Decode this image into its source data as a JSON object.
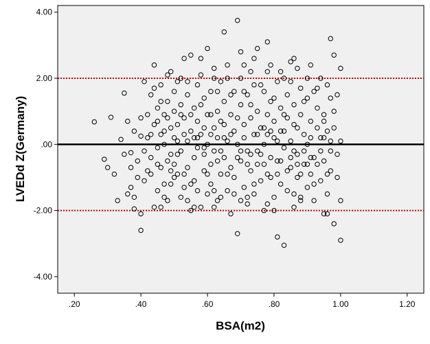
{
  "chart_data": {
    "type": "scatter",
    "xlabel": "BSA(m2)",
    "ylabel": "LVEDd Z(Germany)",
    "xlim": [
      0.15,
      1.25
    ],
    "ylim": [
      -4.5,
      4.2
    ],
    "x_ticks": [
      ".20",
      ".40",
      ".60",
      ".80",
      "1.00",
      "1.20"
    ],
    "y_ticks": [
      "4.00",
      "2.00",
      ".00",
      "-2.00",
      "-4.00"
    ],
    "grid": false,
    "reference_lines": [
      {
        "y": 2.0,
        "style": "dotted",
        "color": "#c00000"
      },
      {
        "y": 0.0,
        "style": "solid",
        "color": "#000000"
      },
      {
        "y": -2.0,
        "style": "dotted",
        "color": "#c00000"
      }
    ],
    "point_count_estimate": 600,
    "points": [
      [
        0.26,
        0.68
      ],
      [
        0.29,
        -0.45
      ],
      [
        0.3,
        -0.7
      ],
      [
        0.31,
        0.82
      ],
      [
        0.32,
        -0.9
      ],
      [
        0.33,
        -1.7
      ],
      [
        0.34,
        0.15
      ],
      [
        0.35,
        -0.3
      ],
      [
        0.35,
        1.55
      ],
      [
        0.36,
        -1.5
      ],
      [
        0.36,
        0.7
      ],
      [
        0.37,
        -1.3
      ],
      [
        0.37,
        -0.7
      ],
      [
        0.37,
        -0.25
      ],
      [
        0.38,
        -1.6
      ],
      [
        0.38,
        -1.95
      ],
      [
        0.38,
        0.4
      ],
      [
        0.39,
        -1.0
      ],
      [
        0.39,
        -0.5
      ],
      [
        0.4,
        0.25
      ],
      [
        0.4,
        -2.1
      ],
      [
        0.4,
        -2.6
      ],
      [
        0.4,
        0.8
      ],
      [
        0.41,
        1.9
      ],
      [
        0.41,
        -1.1
      ],
      [
        0.42,
        -0.8
      ],
      [
        0.42,
        0.2
      ],
      [
        0.43,
        1.5
      ],
      [
        0.43,
        -0.4
      ],
      [
        0.44,
        2.4
      ],
      [
        0.44,
        -1.9
      ],
      [
        0.44,
        0.6
      ],
      [
        0.45,
        1.1
      ],
      [
        0.45,
        -1.4
      ],
      [
        0.45,
        -0.1
      ],
      [
        0.46,
        0.3
      ],
      [
        0.46,
        -0.7
      ],
      [
        0.46,
        1.8
      ],
      [
        0.47,
        0.9
      ],
      [
        0.47,
        -1.2
      ],
      [
        0.47,
        0.0
      ],
      [
        0.48,
        -0.5
      ],
      [
        0.48,
        1.3
      ],
      [
        0.48,
        -1.7
      ],
      [
        0.49,
        0.5
      ],
      [
        0.49,
        -0.3
      ],
      [
        0.49,
        2.2
      ],
      [
        0.5,
        1.0
      ],
      [
        0.5,
        -1.0
      ],
      [
        0.5,
        -0.6
      ],
      [
        0.5,
        0.2
      ],
      [
        0.51,
        1.9
      ],
      [
        0.51,
        -0.9
      ],
      [
        0.51,
        0.6
      ],
      [
        0.52,
        1.2
      ],
      [
        0.52,
        -1.6
      ],
      [
        0.52,
        -0.2
      ],
      [
        0.53,
        2.6
      ],
      [
        0.53,
        0.8
      ],
      [
        0.53,
        -1.3
      ],
      [
        0.54,
        0.1
      ],
      [
        0.54,
        1.5
      ],
      [
        0.54,
        -0.7
      ],
      [
        0.55,
        -2.0
      ],
      [
        0.55,
        0.4
      ],
      [
        0.55,
        2.7
      ],
      [
        0.56,
        1.1
      ],
      [
        0.56,
        -0.4
      ],
      [
        0.56,
        -1.1
      ],
      [
        0.57,
        0.7
      ],
      [
        0.57,
        1.8
      ],
      [
        0.57,
        -0.1
      ],
      [
        0.58,
        -1.9
      ],
      [
        0.58,
        0.3
      ],
      [
        0.58,
        2.1
      ],
      [
        0.59,
        1.4
      ],
      [
        0.59,
        -0.8
      ],
      [
        0.59,
        -0.3
      ],
      [
        0.6,
        2.9
      ],
      [
        0.6,
        0.9
      ],
      [
        0.6,
        -1.5
      ],
      [
        0.6,
        0.0
      ],
      [
        0.61,
        1.6
      ],
      [
        0.61,
        -0.6
      ],
      [
        0.61,
        -1.2
      ],
      [
        0.62,
        0.5
      ],
      [
        0.62,
        2.3
      ],
      [
        0.62,
        -0.2
      ],
      [
        0.63,
        1.0
      ],
      [
        0.63,
        -1.7
      ],
      [
        0.63,
        0.2
      ],
      [
        0.64,
        1.9
      ],
      [
        0.64,
        -0.9
      ],
      [
        0.64,
        0.7
      ],
      [
        0.65,
        3.4
      ],
      [
        0.65,
        -0.4
      ],
      [
        0.65,
        1.3
      ],
      [
        0.66,
        -1.4
      ],
      [
        0.66,
        0.1
      ],
      [
        0.66,
        2.0
      ],
      [
        0.67,
        0.9
      ],
      [
        0.67,
        -0.7
      ],
      [
        0.67,
        -2.1
      ],
      [
        0.68,
        1.6
      ],
      [
        0.68,
        0.4
      ],
      [
        0.68,
        -1.0
      ],
      [
        0.69,
        3.75
      ],
      [
        0.69,
        -2.7
      ],
      [
        0.69,
        0.0
      ],
      [
        0.7,
        2.8
      ],
      [
        0.7,
        1.2
      ],
      [
        0.7,
        -0.5
      ],
      [
        0.71,
        0.6
      ],
      [
        0.71,
        -1.3
      ],
      [
        0.71,
        2.4
      ],
      [
        0.72,
        1.5
      ],
      [
        0.72,
        -0.2
      ],
      [
        0.72,
        -1.8
      ],
      [
        0.73,
        0.8
      ],
      [
        0.73,
        2.2
      ],
      [
        0.73,
        -0.8
      ],
      [
        0.74,
        0.3
      ],
      [
        0.74,
        1.8
      ],
      [
        0.74,
        -1.5
      ],
      [
        0.75,
        2.9
      ],
      [
        0.75,
        -0.6
      ],
      [
        0.75,
        1.0
      ],
      [
        0.76,
        0.5
      ],
      [
        0.76,
        -1.1
      ],
      [
        0.76,
        -0.3
      ],
      [
        0.77,
        1.6
      ],
      [
        0.77,
        0.0
      ],
      [
        0.77,
        -2.0
      ],
      [
        0.78,
        3.1
      ],
      [
        0.78,
        0.9
      ],
      [
        0.78,
        -0.9
      ],
      [
        0.79,
        2.4
      ],
      [
        0.79,
        -0.4
      ],
      [
        0.79,
        1.3
      ],
      [
        0.8,
        0.2
      ],
      [
        0.8,
        -1.6
      ],
      [
        0.8,
        0.7
      ],
      [
        0.81,
        1.9
      ],
      [
        0.81,
        -0.5
      ],
      [
        0.81,
        -2.8
      ],
      [
        0.82,
        1.1
      ],
      [
        0.82,
        -1.2
      ],
      [
        0.82,
        0.4
      ],
      [
        0.83,
        -3.05
      ],
      [
        0.83,
        2.0
      ],
      [
        0.83,
        -0.1
      ],
      [
        0.84,
        0.8
      ],
      [
        0.84,
        -1.4
      ],
      [
        0.84,
        1.5
      ],
      [
        0.85,
        2.5
      ],
      [
        0.85,
        -0.7
      ],
      [
        0.85,
        0.1
      ],
      [
        0.86,
        1.2
      ],
      [
        0.86,
        -1.9
      ],
      [
        0.86,
        0.6
      ],
      [
        0.87,
        2.3
      ],
      [
        0.87,
        -0.3
      ],
      [
        0.87,
        -1.0
      ],
      [
        0.88,
        0.9
      ],
      [
        0.88,
        1.7
      ],
      [
        0.88,
        -1.6
      ],
      [
        0.89,
        0.3
      ],
      [
        0.89,
        -0.6
      ],
      [
        0.9,
        1.4
      ],
      [
        0.9,
        -1.3
      ],
      [
        0.9,
        0.0
      ],
      [
        0.91,
        2.4
      ],
      [
        0.91,
        0.7
      ],
      [
        0.91,
        -0.9
      ],
      [
        0.92,
        1.6
      ],
      [
        0.92,
        -0.4
      ],
      [
        0.92,
        -1.7
      ],
      [
        0.93,
        0.5
      ],
      [
        0.93,
        1.1
      ],
      [
        0.94,
        -1.1
      ],
      [
        0.94,
        2.0
      ],
      [
        0.94,
        0.2
      ],
      [
        0.95,
        -2.1
      ],
      [
        0.95,
        0.9
      ],
      [
        0.95,
        -0.5
      ],
      [
        0.96,
        1.8
      ],
      [
        0.96,
        -1.5
      ],
      [
        0.96,
        0.4
      ],
      [
        0.97,
        3.2
      ],
      [
        0.97,
        -0.8
      ],
      [
        0.97,
        1.4
      ],
      [
        0.98,
        -2.4
      ],
      [
        0.98,
        0.5
      ],
      [
        0.98,
        2.7
      ],
      [
        0.99,
        -0.3
      ],
      [
        0.99,
        1.5
      ],
      [
        1.0,
        -2.9
      ],
      [
        1.0,
        0.1
      ],
      [
        1.0,
        2.3
      ],
      [
        1.0,
        -1.7
      ],
      [
        0.42,
        0.9
      ],
      [
        0.43,
        -0.9
      ],
      [
        0.44,
        1.7
      ],
      [
        0.45,
        -0.6
      ],
      [
        0.46,
        1.3
      ],
      [
        0.47,
        -1.6
      ],
      [
        0.48,
        0.8
      ],
      [
        0.49,
        -1.2
      ],
      [
        0.5,
        1.6
      ],
      [
        0.51,
        -0.3
      ],
      [
        0.52,
        0.9
      ],
      [
        0.53,
        -0.9
      ],
      [
        0.54,
        1.9
      ],
      [
        0.55,
        -1.2
      ],
      [
        0.56,
        0.2
      ],
      [
        0.57,
        -1.4
      ],
      [
        0.58,
        1.2
      ],
      [
        0.59,
        0.5
      ],
      [
        0.6,
        -0.9
      ],
      [
        0.61,
        0.9
      ],
      [
        0.62,
        -1.4
      ],
      [
        0.63,
        1.6
      ],
      [
        0.64,
        -0.2
      ],
      [
        0.65,
        0.6
      ],
      [
        0.66,
        -0.9
      ],
      [
        0.67,
        1.5
      ],
      [
        0.68,
        -1.5
      ],
      [
        0.69,
        0.8
      ],
      [
        0.7,
        -0.2
      ],
      [
        0.71,
        1.6
      ],
      [
        0.72,
        -0.6
      ],
      [
        0.73,
        1.2
      ],
      [
        0.74,
        -1.2
      ],
      [
        0.75,
        0.3
      ],
      [
        0.76,
        1.8
      ],
      [
        0.77,
        -0.6
      ],
      [
        0.78,
        0.3
      ],
      [
        0.79,
        -1.0
      ],
      [
        0.8,
        1.4
      ],
      [
        0.81,
        0.1
      ],
      [
        0.82,
        -0.5
      ],
      [
        0.83,
        0.9
      ],
      [
        0.84,
        -0.8
      ],
      [
        0.85,
        1.9
      ],
      [
        0.86,
        -0.2
      ],
      [
        0.87,
        0.5
      ],
      [
        0.88,
        -0.9
      ],
      [
        0.89,
        1.3
      ],
      [
        0.9,
        -0.6
      ],
      [
        0.91,
        0.2
      ],
      [
        0.92,
        -1.2
      ],
      [
        0.93,
        1.7
      ],
      [
        0.94,
        -0.2
      ],
      [
        0.95,
        0.7
      ],
      [
        0.96,
        -0.9
      ],
      [
        0.97,
        0.1
      ],
      [
        0.98,
        1.0
      ],
      [
        0.99,
        -1.0
      ],
      [
        0.41,
        -0.2
      ],
      [
        0.43,
        0.3
      ],
      [
        0.45,
        0.7
      ],
      [
        0.47,
        0.4
      ],
      [
        0.49,
        -0.8
      ],
      [
        0.51,
        0.1
      ],
      [
        0.53,
        0.3
      ],
      [
        0.55,
        0.9
      ],
      [
        0.57,
        0.2
      ],
      [
        0.59,
        -0.1
      ],
      [
        0.61,
        0.3
      ],
      [
        0.63,
        -0.5
      ],
      [
        0.65,
        0.2
      ],
      [
        0.67,
        0.3
      ],
      [
        0.69,
        -0.4
      ],
      [
        0.71,
        0.2
      ],
      [
        0.73,
        -0.3
      ],
      [
        0.75,
        -0.2
      ],
      [
        0.77,
        0.5
      ],
      [
        0.79,
        0.4
      ],
      [
        0.81,
        -0.9
      ],
      [
        0.83,
        0.4
      ],
      [
        0.85,
        -0.4
      ],
      [
        0.87,
        -0.6
      ],
      [
        0.89,
        -0.2
      ],
      [
        0.91,
        -0.4
      ],
      [
        0.93,
        -0.6
      ],
      [
        0.95,
        0.2
      ],
      [
        0.97,
        -0.2
      ],
      [
        0.52,
        2.0
      ],
      [
        0.58,
        2.6
      ],
      [
        0.62,
        2.0
      ],
      [
        0.66,
        2.4
      ],
      [
        0.7,
        2.0
      ],
      [
        0.74,
        2.6
      ],
      [
        0.78,
        2.2
      ],
      [
        0.82,
        2.2
      ],
      [
        0.86,
        2.6
      ],
      [
        0.9,
        2.0
      ],
      [
        0.48,
        2.1
      ],
      [
        0.56,
        -1.9
      ],
      [
        0.64,
        -1.6
      ],
      [
        0.72,
        -1.6
      ],
      [
        0.8,
        -2.0
      ],
      [
        0.88,
        -1.7
      ],
      [
        0.96,
        -2.1
      ],
      [
        0.46,
        -1.9
      ],
      [
        0.54,
        -1.7
      ],
      [
        0.62,
        -1.9
      ],
      [
        0.7,
        -1.7
      ],
      [
        0.78,
        -1.8
      ],
      [
        0.86,
        -1.5
      ]
    ]
  }
}
